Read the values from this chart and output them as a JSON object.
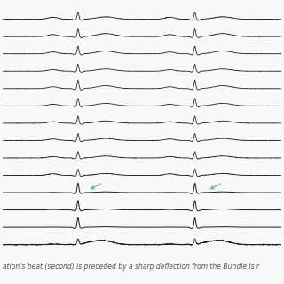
{
  "background_color": "#f8f8f8",
  "fig_width": 3.2,
  "fig_height": 3.2,
  "dpi": 100,
  "caption": "ation's beat (second) is preceded by a sharp deflection from the Bundle is r",
  "caption_fontsize": 5.5,
  "trace_color": "#111111",
  "arrow_color": "#4db8b8",
  "n_leads": 14,
  "beat1": 0.27,
  "beat2": 0.69
}
